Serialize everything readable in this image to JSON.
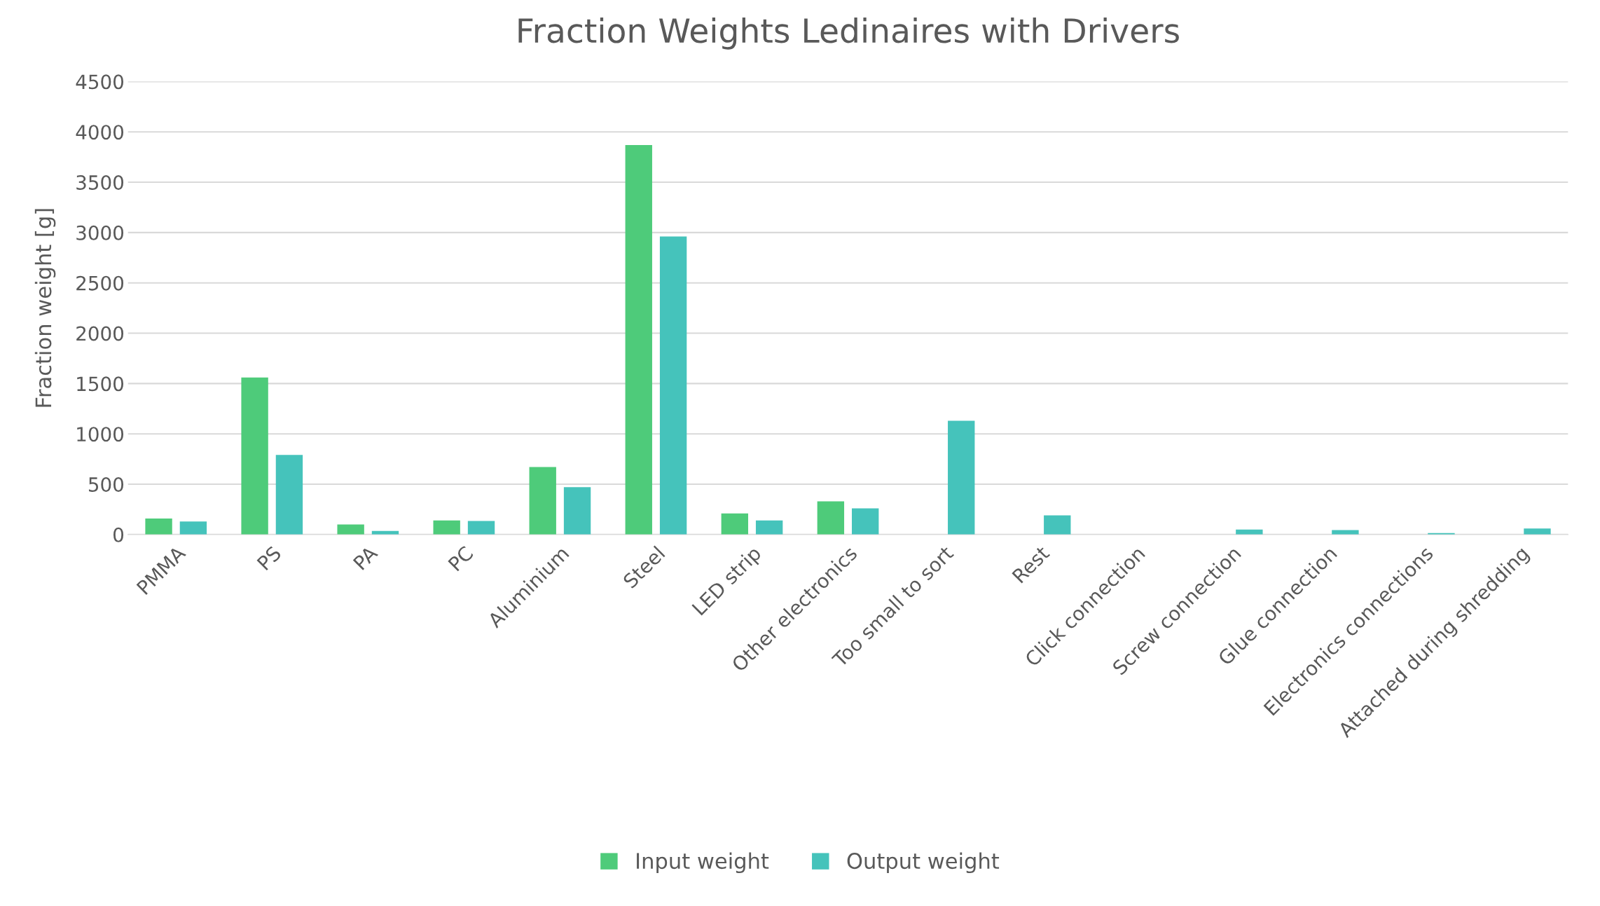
{
  "chart_data": {
    "type": "bar",
    "title": "Fraction Weights Ledinaires with Drivers",
    "ylabel": "Fraction weight [g]",
    "categories": [
      "PMMA",
      "PS",
      "PA",
      "PC",
      "Aluminium",
      "Steel",
      "LED strip",
      "Other electronics",
      "Too small to sort",
      "Rest",
      "Click connection",
      "Screw connection",
      "Glue connection",
      "Electronics connections",
      "Attached during shredding"
    ],
    "series": [
      {
        "name": "Input weight",
        "color": "#4ecb7a",
        "values": [
          160,
          1560,
          100,
          140,
          670,
          3870,
          210,
          330,
          null,
          null,
          null,
          null,
          null,
          null,
          null
        ]
      },
      {
        "name": "Output weight",
        "color": "#45c3bb",
        "values": [
          130,
          790,
          35,
          135,
          470,
          2960,
          140,
          260,
          1130,
          190,
          null,
          50,
          45,
          15,
          60
        ]
      }
    ],
    "ylim": [
      0,
      4500
    ],
    "yticks": [
      0,
      500,
      1000,
      1500,
      2000,
      2500,
      3000,
      3500,
      4000,
      4500
    ],
    "grid": "y",
    "legend": "bottom"
  }
}
